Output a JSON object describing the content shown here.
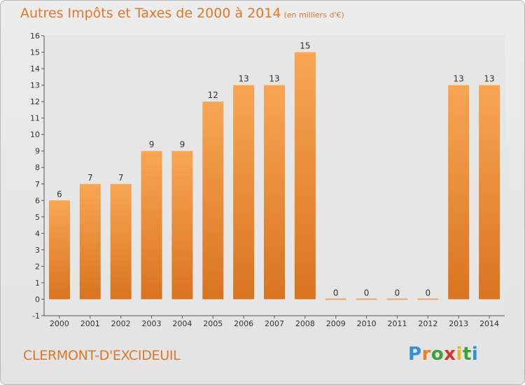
{
  "title": "Autres Impôts et Taxes de 2000 à 2014",
  "unit": "(en milliers d'€)",
  "commune": "CLERMONT-D'EXCIDEUIL",
  "logo": {
    "letters": [
      "P",
      "r",
      "o",
      "x",
      "i",
      "t",
      "i"
    ],
    "colors": [
      "#2f8fd8",
      "#e8822a",
      "#3aa33a",
      "#d8322e",
      "#e8b82a",
      "#3aa33a",
      "#2f8fd8"
    ]
  },
  "colors": {
    "bar_light": "#f8a654",
    "bar_dark": "#d97420",
    "zero_bar": "#e9a76a",
    "text_accent": "#e0782a"
  },
  "chart_data": {
    "type": "bar",
    "title": "Autres Impôts et Taxes de 2000 à 2014",
    "subtitle": "(en milliers d'€)",
    "categories": [
      "2000",
      "2001",
      "2002",
      "2003",
      "2004",
      "2005",
      "2006",
      "2007",
      "2008",
      "2009",
      "2010",
      "2011",
      "2012",
      "2013",
      "2014"
    ],
    "values": [
      6,
      7,
      7,
      9,
      9,
      12,
      13,
      13,
      15,
      0,
      0,
      0,
      0,
      13,
      13
    ],
    "data_labels": [
      "6",
      "7",
      "7",
      "9",
      "9",
      "12",
      "13",
      "13",
      "15",
      "0",
      "0",
      "0",
      "0",
      "13",
      "13"
    ],
    "yticks": [
      -1,
      0,
      1,
      2,
      3,
      4,
      5,
      6,
      7,
      8,
      9,
      10,
      11,
      12,
      13,
      14,
      15,
      16
    ],
    "ylim": [
      -1,
      16
    ],
    "xlabel": "",
    "ylabel": "",
    "grid": false,
    "legend": "none"
  }
}
